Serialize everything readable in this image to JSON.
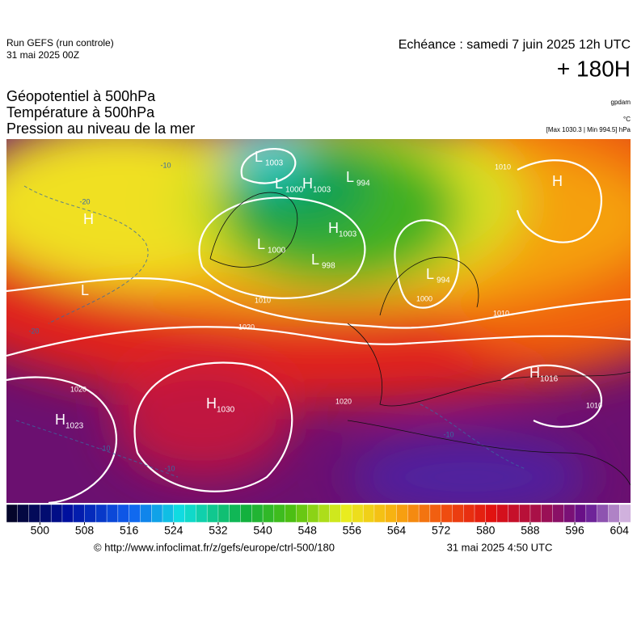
{
  "header": {
    "run": "Run GEFS (run controle)",
    "run_date": "31 mai 2025 00Z",
    "valid": "Echéance : samedi 7 juin 2025 12h UTC",
    "lead": "+ 180H",
    "fields": [
      "Géopotentiel à 500hPa",
      "Température à 500hPa",
      "Pression au niveau de la mer"
    ],
    "unit_geo": "gpdam",
    "unit_temp": "°C",
    "pressure_range": "[Max 1030.3 | Min 994.5] hPa"
  },
  "centers": [
    {
      "letter": "L",
      "value": 1003
    },
    {
      "letter": "L",
      "value": 1000
    },
    {
      "letter": "H",
      "value": 1003
    },
    {
      "letter": "L",
      "value": 994
    },
    {
      "letter": "H"
    },
    {
      "letter": "H",
      "value": 1003
    },
    {
      "letter": "L",
      "value": 1000
    },
    {
      "letter": "L",
      "value": 998
    },
    {
      "letter": "L",
      "value": 994
    },
    {
      "letter": "L"
    },
    {
      "letter": "H",
      "value": 1016
    },
    {
      "letter": "H",
      "value": 1030
    },
    {
      "letter": "H",
      "value": 1023
    },
    {
      "letter": "H"
    }
  ],
  "isobar_labels": [
    1020,
    1020,
    1020,
    1010,
    1010,
    1010,
    1010,
    1000
  ],
  "temperature_labels": [
    -20,
    -10,
    -10,
    -10,
    -20,
    -10
  ],
  "colorbar": {
    "range": [
      494,
      606
    ],
    "ticks": [
      500,
      508,
      516,
      524,
      532,
      540,
      548,
      556,
      564,
      572,
      580,
      588,
      596,
      604
    ]
  },
  "footer": {
    "url": "© http://www.infoclimat.fr/z/gefs/europe/ctrl-500/180",
    "generated": "31 mai 2025  4:50 UTC"
  }
}
